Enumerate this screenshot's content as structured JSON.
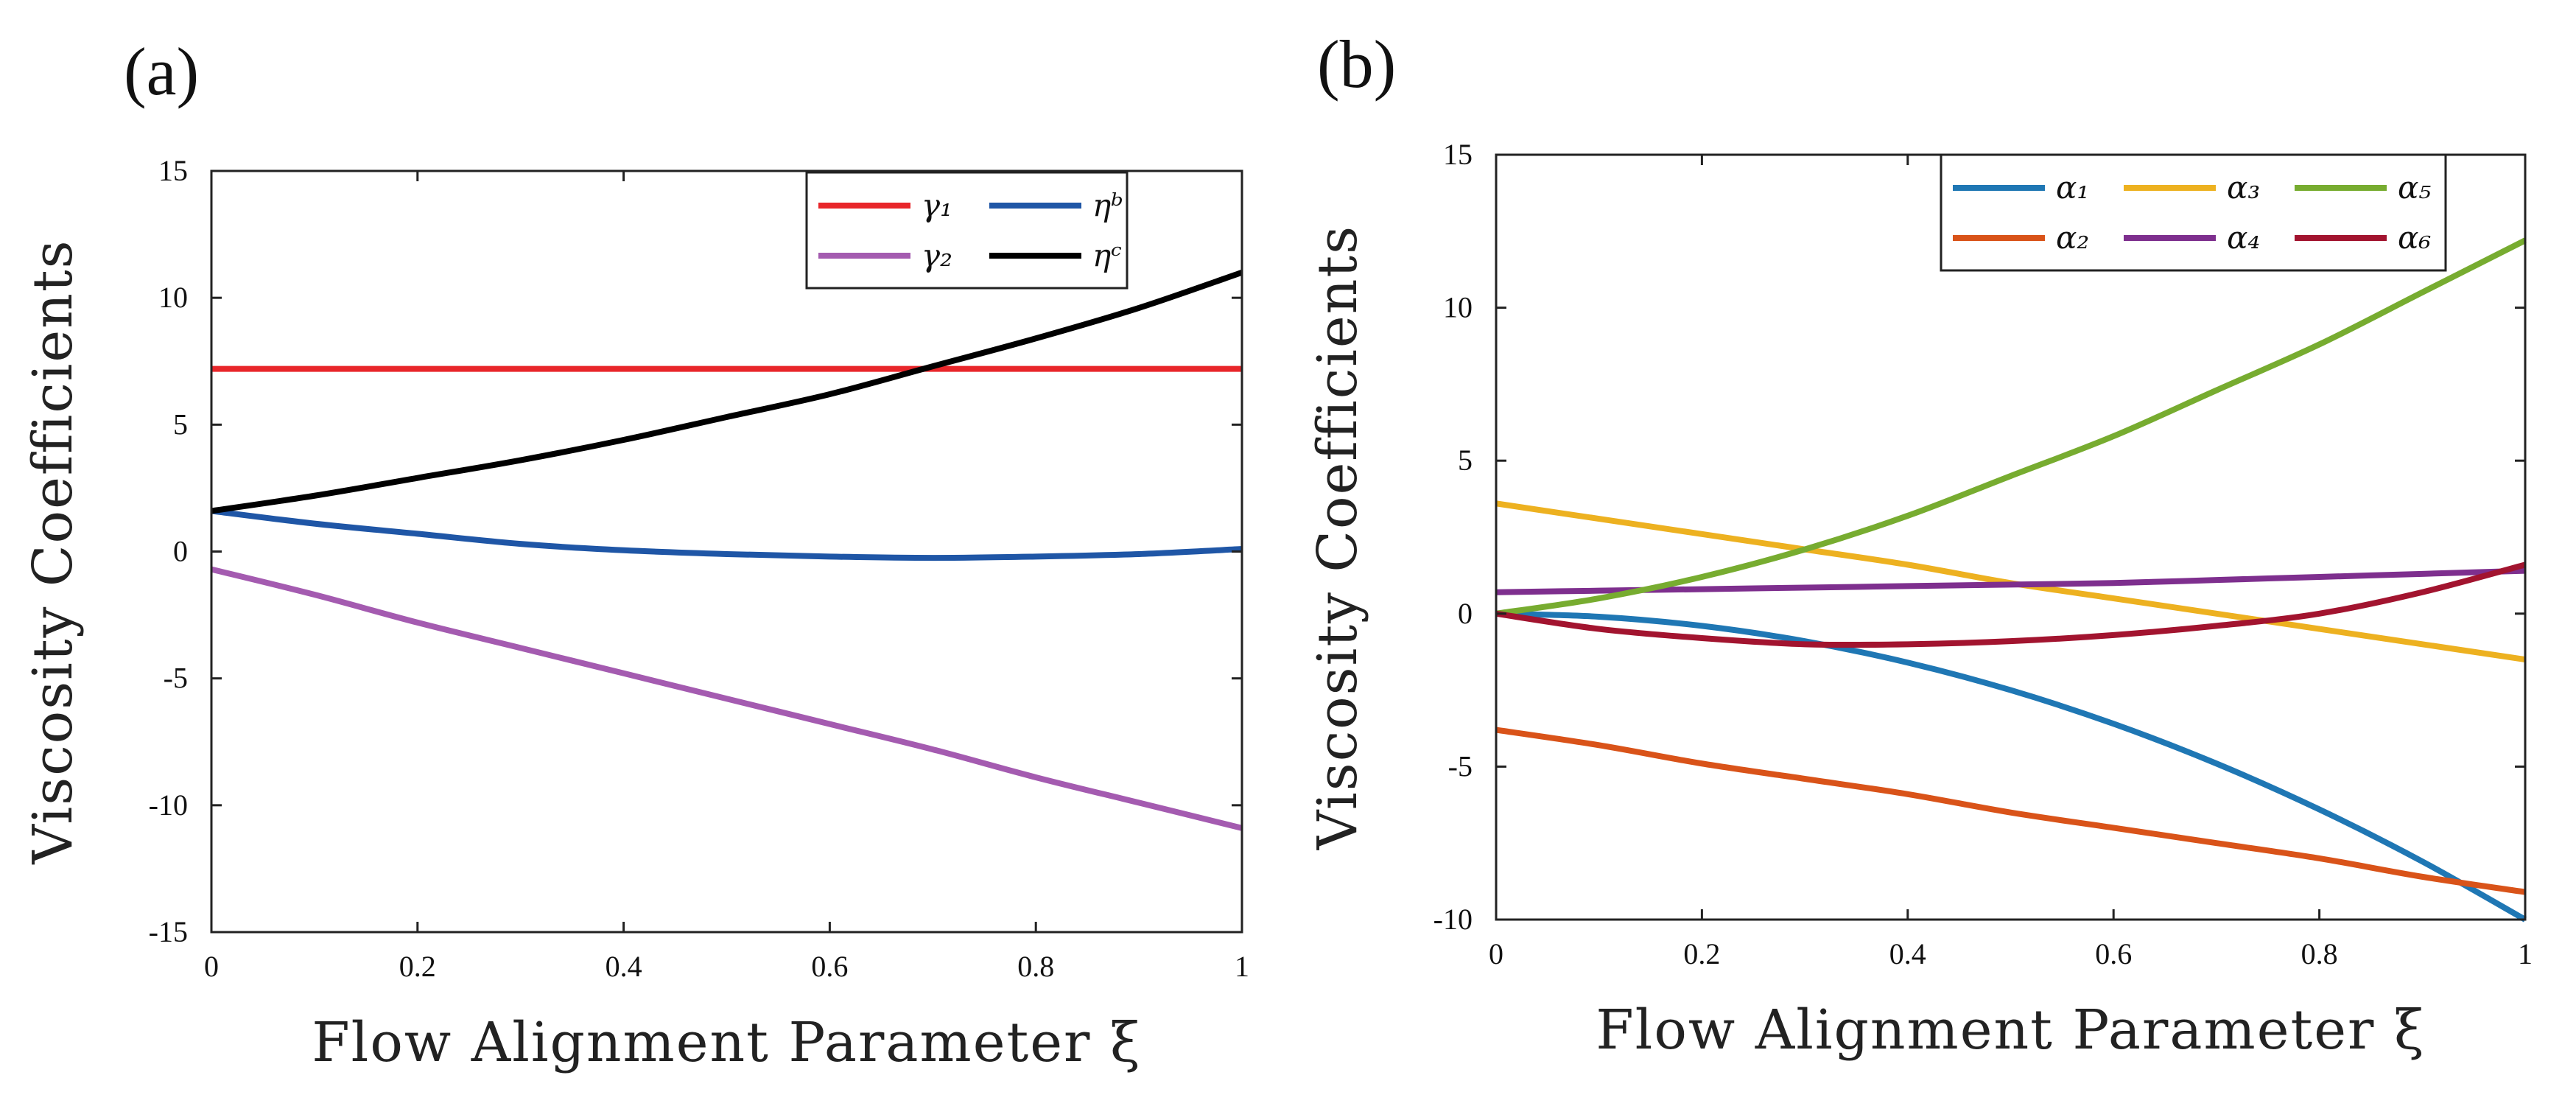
{
  "chart_data": [
    {
      "panel_label": "(a)",
      "type": "line",
      "xlabel": "Flow Alignment Parameter ξ",
      "ylabel": "Viscosity Coefficients",
      "xlim": [
        0,
        1
      ],
      "ylim": [
        -15,
        15
      ],
      "xticks": [
        0,
        0.2,
        0.4,
        0.6,
        0.8,
        1
      ],
      "xtick_labels": [
        "0",
        "0.2",
        "0.4",
        "0.6",
        "0.8",
        "1"
      ],
      "yticks": [
        -15,
        -10,
        -5,
        0,
        5,
        10,
        15
      ],
      "ytick_labels": [
        "-15",
        "-10",
        "-5",
        "0",
        "5",
        "10",
        "15"
      ],
      "legend_location": "top-right",
      "legend_columns": 2,
      "x": [
        0,
        0.1,
        0.2,
        0.3,
        0.4,
        0.5,
        0.6,
        0.7,
        0.8,
        0.9,
        1
      ],
      "series": [
        {
          "name": "γ₁",
          "color": "#e8262a",
          "values": [
            7.2,
            7.2,
            7.2,
            7.2,
            7.2,
            7.2,
            7.2,
            7.2,
            7.2,
            7.2,
            7.2
          ]
        },
        {
          "name": "γ₂",
          "color": "#a45bb0",
          "values": [
            -0.7,
            -1.7,
            -2.8,
            -3.8,
            -4.8,
            -5.8,
            -6.8,
            -7.8,
            -8.9,
            -9.9,
            -10.9
          ]
        },
        {
          "name": "ηᵇ",
          "color": "#1f56a6",
          "values": [
            1.6,
            1.1,
            0.7,
            0.3,
            0.05,
            -0.1,
            -0.2,
            -0.25,
            -0.2,
            -0.1,
            0.1
          ]
        },
        {
          "name": "ηᶜ",
          "color": "#000000",
          "values": [
            1.6,
            2.2,
            2.9,
            3.6,
            4.4,
            5.3,
            6.2,
            7.3,
            8.4,
            9.6,
            11.0
          ]
        }
      ]
    },
    {
      "panel_label": "(b)",
      "type": "line",
      "xlabel": "Flow Alignment Parameter ξ",
      "ylabel": "Viscosity Coefficients",
      "xlim": [
        0,
        1
      ],
      "ylim": [
        -10,
        15
      ],
      "xticks": [
        0,
        0.2,
        0.4,
        0.6,
        0.8,
        1
      ],
      "xtick_labels": [
        "0",
        "0.2",
        "0.4",
        "0.6",
        "0.8",
        "1"
      ],
      "yticks": [
        -10,
        -5,
        0,
        5,
        10,
        15
      ],
      "ytick_labels": [
        "-10",
        "-5",
        "0",
        "5",
        "10",
        "15"
      ],
      "legend_location": "top-right",
      "legend_columns": 3,
      "x": [
        0,
        0.1,
        0.2,
        0.3,
        0.4,
        0.5,
        0.6,
        0.7,
        0.8,
        0.9,
        1
      ],
      "series": [
        {
          "name": "α₁",
          "color": "#1f77b4",
          "values": [
            0,
            -0.1,
            -0.4,
            -0.9,
            -1.6,
            -2.5,
            -3.6,
            -4.9,
            -6.4,
            -8.1,
            -10.0
          ]
        },
        {
          "name": "α₂",
          "color": "#d95319",
          "values": [
            -3.8,
            -4.3,
            -4.9,
            -5.4,
            -5.9,
            -6.5,
            -7.0,
            -7.5,
            -8.0,
            -8.6,
            -9.1
          ]
        },
        {
          "name": "α₃",
          "color": "#edb120",
          "values": [
            3.6,
            3.1,
            2.6,
            2.1,
            1.6,
            1.0,
            0.5,
            0,
            -0.5,
            -1.0,
            -1.5
          ]
        },
        {
          "name": "α₄",
          "color": "#7e2f8e",
          "values": [
            0.7,
            0.75,
            0.8,
            0.85,
            0.9,
            0.95,
            1.0,
            1.1,
            1.2,
            1.3,
            1.4
          ]
        },
        {
          "name": "α₅",
          "color": "#77ac30",
          "values": [
            0,
            0.5,
            1.2,
            2.1,
            3.2,
            4.5,
            5.8,
            7.3,
            8.8,
            10.5,
            12.2
          ]
        },
        {
          "name": "α₆",
          "color": "#a2142f",
          "values": [
            0,
            -0.5,
            -0.8,
            -1.0,
            -1.0,
            -0.9,
            -0.7,
            -0.4,
            0,
            0.7,
            1.6
          ]
        }
      ]
    }
  ]
}
